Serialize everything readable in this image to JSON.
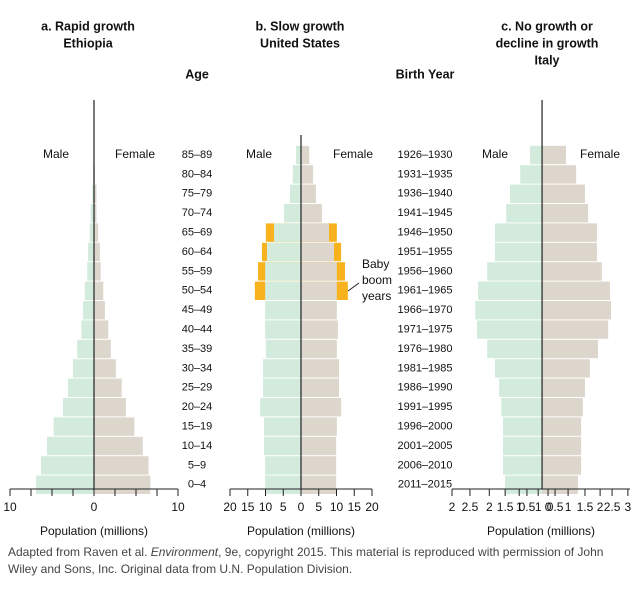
{
  "chart_data": [
    {
      "type": "pyramid",
      "title": [
        "a. Rapid growth",
        "Ethiopia"
      ],
      "categories": [
        "85–89",
        "80–84",
        "75–79",
        "70–74",
        "65–69",
        "60–64",
        "55–59",
        "50–54",
        "45–49",
        "40–44",
        "35–39",
        "30–34",
        "25–29",
        "20–24",
        "15–19",
        "10–14",
        "5–9",
        "0–4"
      ],
      "category_title": "Age",
      "series": [
        {
          "name": "Male",
          "color": "#d3ebdc",
          "values": [
            0.05,
            0.1,
            0.2,
            0.4,
            0.5,
            0.7,
            0.8,
            1.1,
            1.3,
            1.5,
            2.0,
            2.5,
            3.1,
            3.7,
            4.8,
            5.6,
            6.3,
            6.9
          ]
        },
        {
          "name": "Female",
          "color": "#ddd6cc",
          "values": [
            0.05,
            0.1,
            0.3,
            0.3,
            0.5,
            0.7,
            0.8,
            1.1,
            1.3,
            1.7,
            2.0,
            2.6,
            3.3,
            3.8,
            4.8,
            5.8,
            6.5,
            6.7
          ]
        }
      ],
      "xlim": [
        -10,
        10
      ],
      "xticks": [
        {
          "value": -10,
          "label": "10"
        },
        0,
        10
      ],
      "xminorticks": [
        -7.5,
        -5,
        -2.5,
        2.5,
        5,
        7.5
      ],
      "xlabel": "Population (millions)"
    },
    {
      "type": "pyramid",
      "title": [
        "b.  Slow growth",
        "United States"
      ],
      "series": [
        {
          "name": "Male",
          "color": "#d3ebdc",
          "values": [
            1.4,
            2.3,
            3.1,
            4.8,
            7.6,
            9.6,
            10.1,
            10.1,
            10.1,
            10.1,
            9.9,
            10.7,
            10.7,
            11.5,
            10.4,
            10.4,
            10.1,
            10.1
          ]
        },
        {
          "name": "Female",
          "color": "#ddd6cc",
          "values": [
            2.3,
            3.4,
            4.2,
            5.9,
            7.9,
            9.3,
            10.1,
            10.1,
            10.1,
            10.4,
            10.1,
            10.7,
            10.7,
            11.3,
            10.1,
            9.9,
            9.9,
            9.9
          ]
        }
      ],
      "highlight": {
        "label": [
          "Baby",
          "boom",
          "years"
        ],
        "color": "#f7b21d",
        "male": [
          null,
          null,
          null,
          null,
          9.9,
          11,
          12.1,
          13,
          null,
          null,
          null,
          null,
          null,
          null,
          null,
          null,
          null,
          null
        ],
        "female": [
          null,
          null,
          null,
          null,
          10.1,
          11.3,
          12.4,
          13.2,
          null,
          null,
          null,
          null,
          null,
          null,
          null,
          null,
          null,
          null
        ]
      },
      "xlim": [
        -20,
        20
      ],
      "xticks": [
        {
          "value": -20,
          "label": "20"
        },
        {
          "value": -15,
          "label": "15"
        },
        {
          "value": -10,
          "label": "10"
        },
        {
          "value": -5,
          "label": "5"
        },
        0,
        5,
        10,
        15,
        20
      ],
      "xlabel": "Population (millions)"
    },
    {
      "type": "pyramid",
      "title": [
        "c.  No growth or",
        "decline in growth",
        "Italy"
      ],
      "categories": [
        "1926–1930",
        "1931–1935",
        "1936–1940",
        "1941–1945",
        "1946–1950",
        "1951–1955",
        "1956–1960",
        "1961–1965",
        "1966–1970",
        "1971–1975",
        "1976–1980",
        "1981–1985",
        "1986–1990",
        "1991–1995",
        "1996–2000",
        "2001–2005",
        "2006–2010",
        "2011–2015"
      ],
      "category_title": "Birth Year",
      "series": [
        {
          "name": "Male",
          "color": "#d3ebdc",
          "values": [
            0.34,
            0.62,
            0.91,
            1.02,
            1.34,
            1.34,
            1.56,
            1.82,
            1.9,
            1.85,
            1.56,
            1.34,
            1.22,
            1.16,
            1.11,
            1.11,
            1.11,
            1.05
          ]
        },
        {
          "name": "Female",
          "color": "#ddd6cc",
          "values": [
            0.68,
            0.97,
            1.22,
            1.31,
            1.56,
            1.56,
            1.7,
            1.93,
            1.96,
            1.88,
            1.59,
            1.36,
            1.22,
            1.16,
            1.11,
            1.11,
            1.11,
            1.02
          ]
        }
      ],
      "xlim": [
        -2.56,
        2.5
      ],
      "xticks": [
        {
          "value": -2.56,
          "label": "2"
        },
        {
          "value": -2.05,
          "label": "2.5"
        },
        {
          "value": -1.5,
          "label": "2"
        },
        {
          "value": -1.05,
          "label": "1.5"
        },
        {
          "value": -0.65,
          "label": "1"
        },
        {
          "value": -0.43,
          "label": "0.5"
        },
        {
          "value": -0.11,
          "label": "1"
        },
        {
          "value": 0.17,
          "label": "0"
        },
        {
          "value": 0.37,
          "label": "0.5"
        },
        {
          "value": 0.74,
          "label": "1"
        },
        {
          "value": 1.22,
          "label": "1.5"
        },
        {
          "value": 1.65,
          "label": "2"
        },
        {
          "value": 1.99,
          "label": "2.5"
        },
        {
          "value": 2.44,
          "label": "3"
        }
      ],
      "xlabel": "Population (millions)"
    }
  ],
  "footer": {
    "line1": [
      "Adapted from Raven et al. ",
      "Environment",
      ", 9e, copyright 2015. This material is reproduced with permission of John"
    ],
    "line2": "Wiley and Sons, Inc. Original data from U.N. Population Division."
  }
}
